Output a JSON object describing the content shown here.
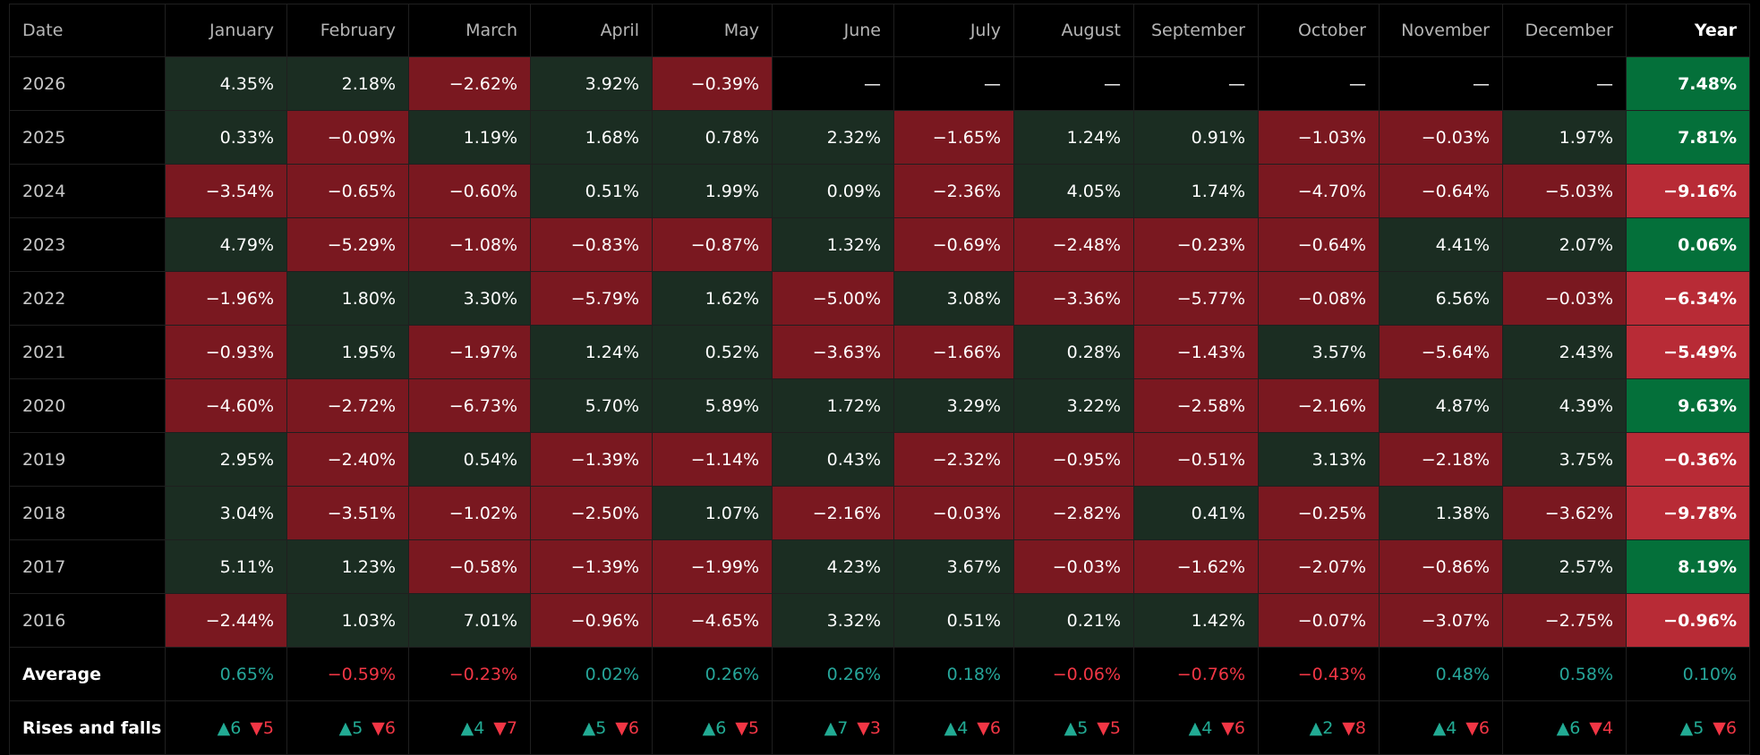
{
  "header": {
    "date": "Date",
    "months": [
      "January",
      "February",
      "March",
      "April",
      "May",
      "June",
      "July",
      "August",
      "September",
      "October",
      "November",
      "December"
    ],
    "year": "Year"
  },
  "rows": [
    {
      "year": "2026",
      "values": [
        "4.35%",
        "2.18%",
        "−2.62%",
        "3.92%",
        "−0.39%",
        "—",
        "—",
        "—",
        "—",
        "—",
        "—",
        "—"
      ],
      "total": "7.48%"
    },
    {
      "year": "2025",
      "values": [
        "0.33%",
        "−0.09%",
        "1.19%",
        "1.68%",
        "0.78%",
        "2.32%",
        "−1.65%",
        "1.24%",
        "0.91%",
        "−1.03%",
        "−0.03%",
        "1.97%"
      ],
      "total": "7.81%"
    },
    {
      "year": "2024",
      "values": [
        "−3.54%",
        "−0.65%",
        "−0.60%",
        "0.51%",
        "1.99%",
        "0.09%",
        "−2.36%",
        "4.05%",
        "1.74%",
        "−4.70%",
        "−0.64%",
        "−5.03%"
      ],
      "total": "−9.16%"
    },
    {
      "year": "2023",
      "values": [
        "4.79%",
        "−5.29%",
        "−1.08%",
        "−0.83%",
        "−0.87%",
        "1.32%",
        "−0.69%",
        "−2.48%",
        "−0.23%",
        "−0.64%",
        "4.41%",
        "2.07%"
      ],
      "total": "0.06%"
    },
    {
      "year": "2022",
      "values": [
        "−1.96%",
        "1.80%",
        "3.30%",
        "−5.79%",
        "1.62%",
        "−5.00%",
        "3.08%",
        "−3.36%",
        "−5.77%",
        "−0.08%",
        "6.56%",
        "−0.03%"
      ],
      "total": "−6.34%"
    },
    {
      "year": "2021",
      "values": [
        "−0.93%",
        "1.95%",
        "−1.97%",
        "1.24%",
        "0.52%",
        "−3.63%",
        "−1.66%",
        "0.28%",
        "−1.43%",
        "3.57%",
        "−5.64%",
        "2.43%"
      ],
      "total": "−5.49%"
    },
    {
      "year": "2020",
      "values": [
        "−4.60%",
        "−2.72%",
        "−6.73%",
        "5.70%",
        "5.89%",
        "1.72%",
        "3.29%",
        "3.22%",
        "−2.58%",
        "−2.16%",
        "4.87%",
        "4.39%"
      ],
      "total": "9.63%"
    },
    {
      "year": "2019",
      "values": [
        "2.95%",
        "−2.40%",
        "0.54%",
        "−1.39%",
        "−1.14%",
        "0.43%",
        "−2.32%",
        "−0.95%",
        "−0.51%",
        "3.13%",
        "−2.18%",
        "3.75%"
      ],
      "total": "−0.36%"
    },
    {
      "year": "2018",
      "values": [
        "3.04%",
        "−3.51%",
        "−1.02%",
        "−2.50%",
        "1.07%",
        "−2.16%",
        "−0.03%",
        "−2.82%",
        "0.41%",
        "−0.25%",
        "1.38%",
        "−3.62%"
      ],
      "total": "−9.78%"
    },
    {
      "year": "2017",
      "values": [
        "5.11%",
        "1.23%",
        "−0.58%",
        "−1.39%",
        "−1.99%",
        "4.23%",
        "3.67%",
        "−0.03%",
        "−1.62%",
        "−2.07%",
        "−0.86%",
        "2.57%"
      ],
      "total": "8.19%"
    },
    {
      "year": "2016",
      "values": [
        "−2.44%",
        "1.03%",
        "7.01%",
        "−0.96%",
        "−4.65%",
        "3.32%",
        "0.51%",
        "0.21%",
        "1.42%",
        "−0.07%",
        "−3.07%",
        "−2.75%"
      ],
      "total": "−0.96%"
    }
  ],
  "average": {
    "label": "Average",
    "values": [
      "0.65%",
      "−0.59%",
      "−0.23%",
      "0.02%",
      "0.26%",
      "0.26%",
      "0.18%",
      "−0.06%",
      "−0.76%",
      "−0.43%",
      "0.48%",
      "0.58%"
    ],
    "total": "0.10%"
  },
  "rises_falls": {
    "label": "Rises and falls",
    "values": [
      {
        "up": "▲6",
        "down": "▼5"
      },
      {
        "up": "▲5",
        "down": "▼6"
      },
      {
        "up": "▲4",
        "down": "▼7"
      },
      {
        "up": "▲5",
        "down": "▼6"
      },
      {
        "up": "▲6",
        "down": "▼5"
      },
      {
        "up": "▲7",
        "down": "▼3"
      },
      {
        "up": "▲4",
        "down": "▼6"
      },
      {
        "up": "▲5",
        "down": "▼5"
      },
      {
        "up": "▲4",
        "down": "▼6"
      },
      {
        "up": "▲2",
        "down": "▼8"
      },
      {
        "up": "▲4",
        "down": "▼6"
      },
      {
        "up": "▲6",
        "down": "▼4"
      }
    ],
    "total": {
      "up": "▲5",
      "down": "▼6"
    }
  },
  "colors": {
    "positive_cell": "#1b2d22",
    "negative_cell": "#7a1820",
    "positive_year": "#04703a",
    "negative_year": "#b82b36",
    "positive_text": "#26a69a",
    "negative_text": "#f23645"
  }
}
